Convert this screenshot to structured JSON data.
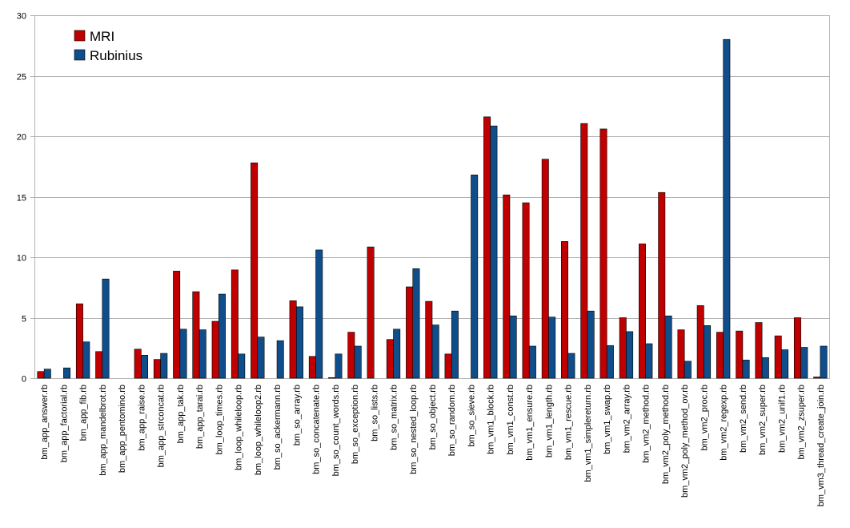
{
  "chart_data": {
    "type": "bar",
    "title": "",
    "xlabel": "",
    "ylabel": "",
    "ylim": [
      0,
      30
    ],
    "y_ticks": [
      0,
      5,
      10,
      15,
      20,
      25,
      30
    ],
    "grid": "horizontal",
    "legend_position": "top-left",
    "categories": [
      "bm_app_answer.rb",
      "bm_app_factorial.rb",
      "bm_app_fib.rb",
      "bm_app_mandelbrot.rb",
      "bm_app_pentomino.rb",
      "bm_app_raise.rb",
      "bm_app_strconcat.rb",
      "bm_app_tak.rb",
      "bm_app_tarai.rb",
      "bm_loop_times.rb",
      "bm_loop_whileloop.rb",
      "bm_loop_whileloop2.rb",
      "bm_so_ackermann.rb",
      "bm_so_array.rb",
      "bm_so_concatenate.rb",
      "bm_so_count_words.rb",
      "bm_so_exception.rb",
      "bm_so_lists.rb",
      "bm_so_matrix.rb",
      "bm_so_nested_loop.rb",
      "bm_so_object.rb",
      "bm_so_random.rb",
      "bm_so_sieve.rb",
      "bm_vm1_block.rb",
      "bm_vm1_const.rb",
      "bm_vm1_ensure.rb",
      "bm_vm1_length.rb",
      "bm_vm1_rescue.rb",
      "bm_vm1_simplereturn.rb",
      "bm_vm1_swap.rb",
      "bm_vm2_array.rb",
      "bm_vm2_method.rb",
      "bm_vm2_poly_method.rb",
      "bm_vm2_poly_method_ov.rb",
      "bm_vm2_proc.rb",
      "bm_vm2_regexp.rb",
      "bm_vm2_send.rb",
      "bm_vm2_super.rb",
      "bm_vm2_unif1.rb",
      "bm_vm2_zsuper.rb",
      "bm_vm3_thread_create_join.rb"
    ],
    "series": [
      {
        "name": "MRI",
        "color": "#c00000",
        "values": [
          0.55,
          0,
          6.15,
          2.2,
          0,
          2.4,
          1.55,
          8.85,
          7.15,
          4.7,
          8.95,
          17.8,
          0,
          6.4,
          1.8,
          0.05,
          3.8,
          10.85,
          3.2,
          7.55,
          6.35,
          2.0,
          0,
          21.6,
          15.15,
          14.5,
          18.1,
          11.3,
          21.05,
          20.6,
          5.0,
          11.1,
          15.35,
          4.0,
          6.0,
          3.8,
          3.9,
          4.6,
          3.5,
          5.0,
          0.1
        ]
      },
      {
        "name": "Rubinius",
        "color": "#0f4e8a",
        "values": [
          0.75,
          0.85,
          3.0,
          8.2,
          0,
          1.9,
          2.05,
          4.05,
          4.0,
          6.95,
          2.0,
          3.4,
          3.1,
          5.9,
          10.6,
          2.0,
          2.65,
          0,
          4.05,
          9.05,
          4.4,
          5.55,
          16.8,
          20.85,
          5.15,
          2.65,
          5.05,
          2.05,
          5.55,
          2.7,
          3.85,
          2.85,
          5.15,
          1.4,
          4.35,
          28.0,
          1.5,
          1.7,
          2.35,
          2.55,
          2.65
        ]
      }
    ]
  }
}
